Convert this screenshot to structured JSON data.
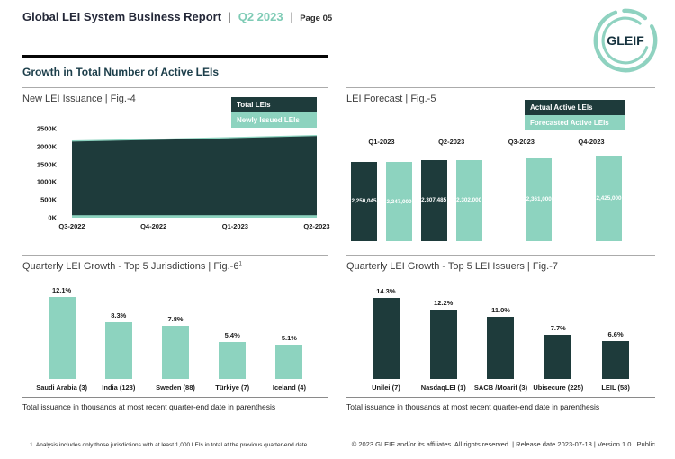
{
  "header": {
    "title": "Global LEI System Business Report",
    "separator": "|",
    "quarter": "Q2 2023",
    "page_label": "Page 05",
    "logo_text": "GLEIF"
  },
  "section_heading": "Growth in Total Number of Active LEIs",
  "colors": {
    "dark": "#1E3B3B",
    "mint": "#8DD3BF",
    "quarter_accent": "#7ECBB5",
    "heading": "#1C3E4A"
  },
  "chart_data": [
    {
      "id": "fig4",
      "type": "area",
      "title": "New LEI Issuance | Fig.-4",
      "x": [
        "Q3-2022",
        "Q4-2022",
        "Q1-2023",
        "Q2-2023"
      ],
      "series": [
        {
          "name": "Total LEIs",
          "color": "#1E3B3B",
          "values": [
            2155000,
            2200000,
            2250045,
            2307485
          ]
        },
        {
          "name": "Newly Issued LEIs",
          "color": "#8DD3BF",
          "values": [
            70000,
            70000,
            70000,
            70000
          ]
        }
      ],
      "y_ticks": [
        "2500K",
        "2000K",
        "1500K",
        "1000K",
        "500K",
        "0K"
      ],
      "ylim": [
        0,
        2500000
      ],
      "legend_position": "top-right",
      "grid": false
    },
    {
      "id": "fig5",
      "type": "bar",
      "title": "LEI Forecast | Fig.-5",
      "categories": [
        "Q1-2023",
        "Q2-2023",
        "Q3-2023",
        "Q4-2023"
      ],
      "series": [
        {
          "name": "Actual Active LEIs",
          "color": "#1E3B3B",
          "values": [
            2250045,
            2307485,
            null,
            null
          ],
          "labels": [
            "2,250,045",
            "2,307,485",
            "",
            ""
          ]
        },
        {
          "name": "Forecasted Active LEIs",
          "color": "#8DD3BF",
          "values": [
            2247000,
            2302000,
            2361000,
            2425000
          ],
          "labels": [
            "2,247,000",
            "2,302,000",
            "2,361,000",
            "2,425,000"
          ]
        }
      ],
      "ylim": [
        0,
        2425000
      ],
      "legend_position": "top-right",
      "grid": false
    },
    {
      "id": "fig6",
      "type": "bar",
      "title": "Quarterly LEI Growth - Top 5 Jurisdictions | Fig.-6",
      "title_sup": "1",
      "categories": [
        "Saudi Arabia (3)",
        "India (128)",
        "Sweden (88)",
        "Türkiye (7)",
        "Iceland (4)"
      ],
      "values": [
        12.1,
        8.3,
        7.8,
        5.4,
        5.1
      ],
      "labels": [
        "12.1%",
        "8.3%",
        "7.8%",
        "5.4%",
        "5.1%"
      ],
      "bar_color": "#8DD3BF",
      "ylim": [
        0,
        13
      ],
      "grid": false
    },
    {
      "id": "fig7",
      "type": "bar",
      "title": "Quarterly LEI Growth - Top 5 LEI Issuers | Fig.-7",
      "categories": [
        "Unilei (7)",
        "NasdaqLEI (1)",
        "SACB /Moarif (3)",
        "Ubisecure (225)",
        "LEIL (58)"
      ],
      "values": [
        14.3,
        12.2,
        11.0,
        7.7,
        6.6
      ],
      "labels": [
        "14.3%",
        "12.2%",
        "11.0%",
        "7.7%",
        "6.6%"
      ],
      "bar_color": "#1E3B3B",
      "ylim": [
        0,
        15.5
      ],
      "grid": false
    }
  ],
  "footer": {
    "left_note": "Total issuance in thousands at most recent quarter-end date in parenthesis",
    "right_note": "Total issuance in thousands at most recent quarter-end date in parenthesis",
    "footnote": "1. Analysis includes only those jurisdictions with at least 1,000 LEIs in total at the previous quarter-end date.",
    "copyright": "© 2023 GLEIF and/or its affiliates. All rights reserved. | Release date 2023-07-18 | Version 1.0 | Public"
  }
}
